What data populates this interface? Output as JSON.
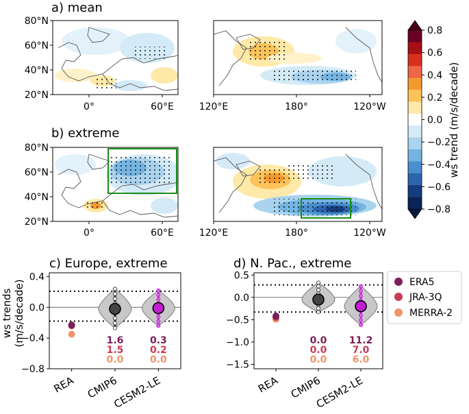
{
  "panels": {
    "a": {
      "title": "a) mean"
    },
    "b": {
      "title": "b) extreme"
    },
    "c": {
      "title": "c) Europe, extreme"
    },
    "d": {
      "title": "d) N. Pac., extreme"
    }
  },
  "map_axes": {
    "lat_ticks": [
      "80°N",
      "60°N",
      "40°N",
      "20°N"
    ],
    "europe_lon_ticks": [
      "0°",
      "60°E"
    ],
    "pacific_lon_ticks": [
      "120°E",
      "180°",
      "120°W"
    ]
  },
  "colorbar": {
    "label": "ws trend (m/s/decade)",
    "ticks": [
      "0.8",
      "0.6",
      "0.4",
      "0.2",
      "0.0",
      "−0.2",
      "−0.4",
      "−0.6",
      "−0.8"
    ],
    "colors": [
      "#6b0026",
      "#a50f15",
      "#d7301f",
      "#ef6548",
      "#f39a2e",
      "#fcc35a",
      "#fee9a8",
      "#ffffff",
      "#d4ebf7",
      "#a9d3ee",
      "#74b4e0",
      "#4a8fcd",
      "#2c64ad",
      "#163c7e",
      "#0b2457"
    ]
  },
  "legend": {
    "items": [
      {
        "label": "ERA5",
        "color": "#7b1e5a"
      },
      {
        "label": "JRA-3Q",
        "color": "#c93b55"
      },
      {
        "label": "MERRA-2",
        "color": "#f0956a"
      }
    ]
  },
  "chart_data": [
    {
      "type": "violin",
      "title": "c) Europe, extreme",
      "ylabel": "ws trends\n(m/s/decade)",
      "ylabel_line1": "ws trends",
      "ylabel_line2": "(m/s/decade)",
      "categories": [
        "REA",
        "CMIP6",
        "CESM2-LE"
      ],
      "ylim": [
        -0.8,
        0.45
      ],
      "yticks": [
        "0.4",
        "0.0",
        "−0.4",
        "−0.8"
      ],
      "ytick_values": [
        0.4,
        0.0,
        -0.4,
        -0.8
      ],
      "dotted_lines": [
        0.21,
        -0.18
      ],
      "reanalysis": {
        "ERA5": -0.23,
        "JRA-3Q": -0.24,
        "MERRA-2": -0.35
      },
      "ensemble_means": {
        "CMIP6": -0.02,
        "CESM2-LE": -0.01
      },
      "ensemble_range": {
        "CMIP6": [
          -0.27,
          0.24
        ],
        "CESM2-LE": [
          -0.24,
          0.22
        ]
      },
      "percent_exceed": {
        "CMIP6": [
          "1.6",
          "1.5",
          "0.0"
        ],
        "CESM2-LE": [
          "0.3",
          "0.2",
          "0.0"
        ]
      }
    },
    {
      "type": "violin",
      "title": "d) N. Pac., extreme",
      "categories": [
        "REA",
        "CMIP6",
        "CESM2-LE"
      ],
      "ylim": [
        -1.6,
        0.55
      ],
      "yticks": [
        "0.5",
        "0.0",
        "−0.5",
        "−1.0",
        "−1.5"
      ],
      "ytick_values": [
        0.5,
        0.0,
        -0.5,
        -1.0,
        -1.5
      ],
      "dotted_lines": [
        0.28,
        -0.33
      ],
      "reanalysis": {
        "ERA5": -0.42,
        "JRA-3Q": -0.45,
        "MERRA-2": -0.49
      },
      "ensemble_means": {
        "CMIP6": -0.05,
        "CESM2-LE": -0.2
      },
      "ensemble_range": {
        "CMIP6": [
          -0.33,
          0.33
        ],
        "CESM2-LE": [
          -0.62,
          0.25
        ]
      },
      "percent_exceed": {
        "CMIP6": [
          "0.0",
          "0.0",
          "0.0"
        ],
        "CESM2-LE": [
          "11.2",
          "7.0",
          "6.0"
        ]
      }
    }
  ]
}
